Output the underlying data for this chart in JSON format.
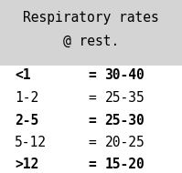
{
  "title_line1": "Respiratory rates",
  "title_line2": "@ rest.",
  "header_bg": "#d4d4d4",
  "body_bg": "#ffffff",
  "rows": [
    {
      "age": "<1",
      "eq": "=",
      "rate": "30-40",
      "bold": true
    },
    {
      "age": "1-2",
      "eq": "=",
      "rate": "25-35",
      "bold": false
    },
    {
      "age": "2-5",
      "eq": "=",
      "rate": "25-30",
      "bold": true
    },
    {
      "age": "5-12",
      "eq": "=",
      "rate": "20-25",
      "bold": false
    },
    {
      "age": ">12",
      "eq": "=",
      "rate": "15-20",
      "bold": true
    }
  ],
  "title_fontsize": 10.5,
  "row_fontsize": 10.5,
  "font_family": "DejaVu Sans Mono"
}
